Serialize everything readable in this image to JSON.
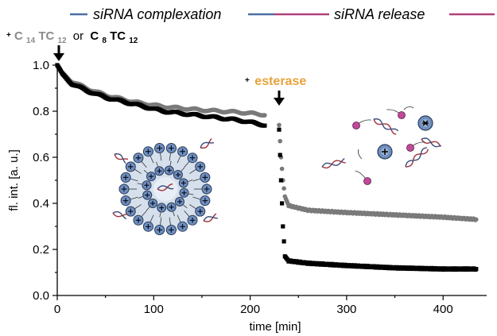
{
  "chart_data": {
    "type": "scatter",
    "xlabel": "time [min]",
    "ylabel": "fl. int. [a. u.]",
    "xlim": [
      0,
      450
    ],
    "ylim": [
      0.0,
      1.0
    ],
    "x_ticks": [
      "0",
      "100",
      "200",
      "300",
      "400"
    ],
    "y_ticks": [
      "0.0",
      "0.2",
      "0.4",
      "0.6",
      "0.8",
      "1.0"
    ],
    "grid": false,
    "phases": [
      {
        "label": "siRNA complexation",
        "x_range": [
          0,
          225
        ],
        "color": "#4a6fa5"
      },
      {
        "label": "siRNA release",
        "x_range": [
          225,
          440
        ],
        "color": "#b0407a"
      }
    ],
    "annotations": {
      "start": {
        "x": 0,
        "prefix": "+",
        "compound1": {
          "base": "C",
          "sub1": "14",
          "mid": "TC",
          "sub2": "12"
        },
        "or_text": "or",
        "compound2": {
          "base": "C",
          "sub1": "8",
          "mid": "TC",
          "sub2": "12"
        }
      },
      "esterase": {
        "x": 222,
        "prefix": "+",
        "label": "esterase",
        "color": "#e8a33c"
      }
    },
    "series": [
      {
        "name": "C14TC12",
        "color": "#7a7a7a",
        "points": [
          [
            0,
            1.0
          ],
          [
            5,
            0.965
          ],
          [
            15,
            0.93
          ],
          [
            30,
            0.9
          ],
          [
            50,
            0.87
          ],
          [
            80,
            0.84
          ],
          [
            110,
            0.82
          ],
          [
            150,
            0.805
          ],
          [
            190,
            0.795
          ],
          [
            215,
            0.785
          ],
          [
            230,
            0.74
          ],
          [
            232,
            0.6
          ],
          [
            234,
            0.5
          ],
          [
            236,
            0.43
          ],
          [
            240,
            0.39
          ],
          [
            260,
            0.37
          ],
          [
            300,
            0.36
          ],
          [
            350,
            0.35
          ],
          [
            400,
            0.34
          ],
          [
            435,
            0.33
          ]
        ]
      },
      {
        "name": "C8TC12",
        "color": "#000000",
        "points": [
          [
            0,
            1.0
          ],
          [
            5,
            0.96
          ],
          [
            15,
            0.92
          ],
          [
            30,
            0.89
          ],
          [
            50,
            0.86
          ],
          [
            80,
            0.83
          ],
          [
            110,
            0.8
          ],
          [
            150,
            0.78
          ],
          [
            190,
            0.76
          ],
          [
            215,
            0.74
          ],
          [
            230,
            0.72
          ],
          [
            232,
            0.5
          ],
          [
            234,
            0.3
          ],
          [
            236,
            0.17
          ],
          [
            240,
            0.15
          ],
          [
            260,
            0.14
          ],
          [
            300,
            0.13
          ],
          [
            350,
            0.12
          ],
          [
            400,
            0.115
          ],
          [
            435,
            0.115
          ]
        ]
      }
    ],
    "icons": [
      "lipoplex-micelle-icon",
      "released-sirna-icon"
    ]
  }
}
